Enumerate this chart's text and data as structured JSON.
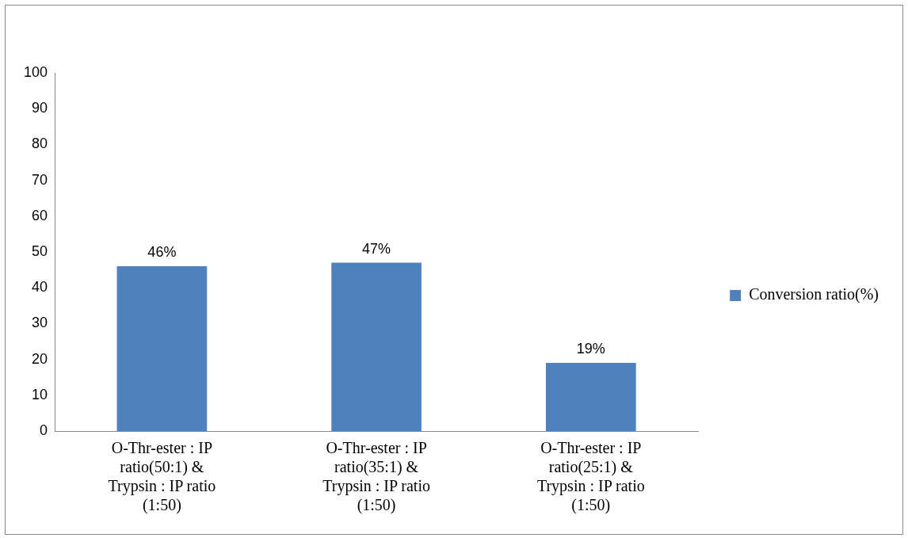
{
  "chart_data": {
    "type": "bar",
    "categories": [
      "O-Thr-ester : IP ratio(50:1) & Trypsin : IP ratio (1:50)",
      "O-Thr-ester : IP ratio(35:1) & Trypsin : IP ratio (1:50)",
      "O-Thr-ester : IP ratio(25:1) & Trypsin : IP ratio (1:50)"
    ],
    "series": [
      {
        "name": "Conversion ratio(%)",
        "color": "#4f81bd",
        "values": [
          46,
          47,
          19
        ],
        "value_labels": [
          "46%",
          "47%",
          "19%"
        ]
      }
    ],
    "ylim": [
      0,
      100
    ],
    "yticks": [
      0,
      10,
      20,
      30,
      40,
      50,
      60,
      70,
      80,
      90,
      100
    ],
    "grid": false,
    "legend": "right"
  }
}
